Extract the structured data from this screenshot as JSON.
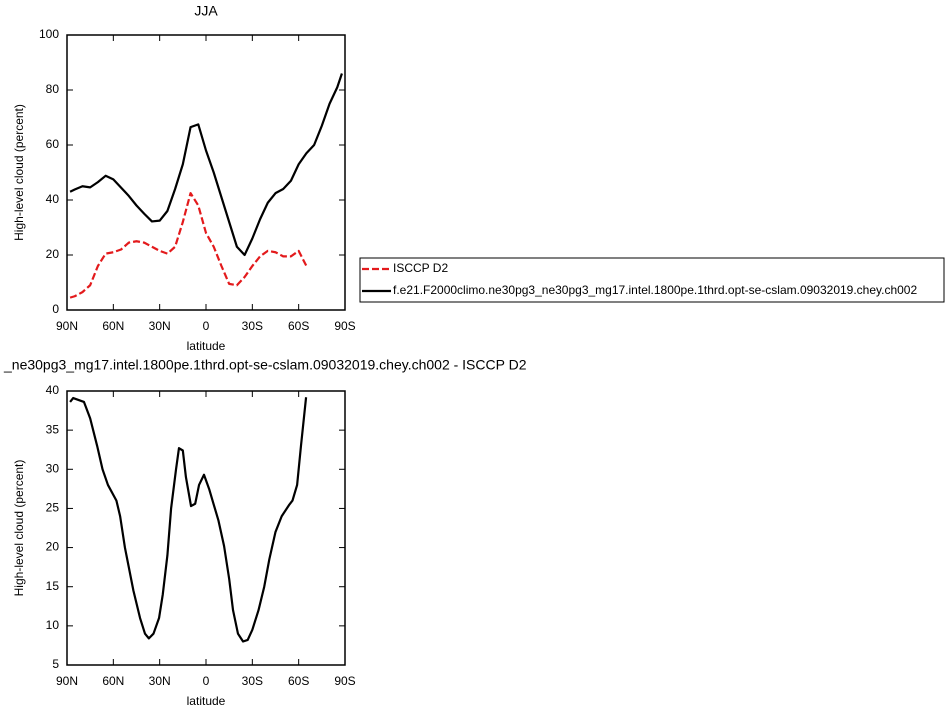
{
  "chart_data": [
    {
      "type": "line",
      "title": "JJA",
      "xlabel": "latitude",
      "ylabel": "High-level cloud (percent)",
      "x": [
        88,
        85,
        80,
        75,
        70,
        65,
        60,
        55,
        50,
        45,
        40,
        35,
        30,
        25,
        20,
        15,
        10,
        5,
        0,
        -5,
        -10,
        -15,
        -20,
        -25,
        -30,
        -35,
        -40,
        -45,
        -50,
        -55,
        -60,
        -65,
        -70,
        -75,
        -80,
        -85,
        -88
      ],
      "series": [
        {
          "name": "ISCCP D2",
          "color": "#e31a1c",
          "dashed": true,
          "values": [
            4.5,
            5,
            6.5,
            9,
            16,
            20.5,
            21,
            22,
            24.5,
            25,
            24.5,
            23,
            21.5,
            20.5,
            23,
            32,
            42.5,
            38,
            28,
            23,
            16,
            9.5,
            9,
            12,
            16,
            19.5,
            21.5,
            21,
            19.5,
            19.5,
            21.5,
            16,
            null,
            null,
            null,
            null,
            null
          ]
        },
        {
          "name": "f.e21.F2000climo.ne30pg3_ne30pg3_mg17.intel.1800pe.1thrd.opt-se-cslam.09032019.chey.ch002",
          "color": "#000000",
          "dashed": false,
          "values": [
            43,
            43.8,
            45,
            44.6,
            46.5,
            48.8,
            47.5,
            44.5,
            41.5,
            38,
            35,
            32.2,
            32.5,
            36,
            44,
            53,
            66.5,
            67.5,
            58,
            50,
            41,
            32,
            23,
            20,
            26,
            33,
            39,
            42.5,
            44,
            47,
            53,
            57,
            60,
            67,
            75,
            81,
            86
          ]
        }
      ],
      "xlim": [
        90,
        -90
      ],
      "xticks": [
        {
          "value": 90,
          "label": "90N"
        },
        {
          "value": 60,
          "label": "60N"
        },
        {
          "value": 30,
          "label": "30N"
        },
        0,
        {
          "value": -30,
          "label": "30S"
        },
        {
          "value": -60,
          "label": "60S"
        },
        {
          "value": -90,
          "label": "90S"
        }
      ],
      "ylim": [
        0,
        100
      ],
      "yticks": [
        0,
        20,
        40,
        60,
        80,
        100
      ],
      "legend": "right"
    },
    {
      "type": "line",
      "title": "_ne30pg3_mg17.intel.1800pe.1thrd.opt-se-cslam.09032019.chey.ch002 - ISCCP D2",
      "xlabel": "latitude",
      "ylabel": "High-level cloud (percent)",
      "x": [
        88,
        86,
        79,
        75,
        70.5,
        67,
        63.5,
        58,
        55.6,
        52.5,
        47,
        42.7,
        39.5,
        37,
        34,
        30.4,
        28,
        25,
        22.6,
        19.4,
        17.5,
        15,
        13,
        9.7,
        7,
        4.5,
        1.3,
        -2,
        -5,
        -8,
        -11.7,
        -15,
        -17.5,
        -20.7,
        -24,
        -27,
        -30,
        -34,
        -37.7,
        -41,
        -45,
        -49,
        -54,
        -56,
        -59,
        -61.5,
        -64.8
      ],
      "series": [
        {
          "color": "#000000",
          "dashed": false,
          "values": [
            38.6,
            39.1,
            38.6,
            36.5,
            33,
            30,
            28,
            26,
            24,
            20,
            14.5,
            11,
            9,
            8.4,
            9,
            11,
            14,
            19,
            25,
            30,
            32.7,
            32.4,
            29,
            25.3,
            25.6,
            28,
            29.3,
            27.5,
            25.5,
            23.5,
            20.2,
            16,
            12,
            9,
            8,
            8.2,
            9.5,
            12,
            15,
            18.5,
            22,
            24,
            25.5,
            26,
            28,
            33,
            39.2
          ]
        }
      ],
      "xlim": [
        90,
        -90
      ],
      "xticks": [
        {
          "value": 90,
          "label": "90N"
        },
        {
          "value": 60,
          "label": "60N"
        },
        {
          "value": 30,
          "label": "30N"
        },
        0,
        {
          "value": -30,
          "label": "30S"
        },
        {
          "value": -60,
          "label": "60S"
        },
        {
          "value": -90,
          "label": "90S"
        }
      ],
      "ylim": [
        5,
        40
      ],
      "yticks": [
        5,
        10,
        15,
        20,
        25,
        30,
        35,
        40
      ]
    }
  ]
}
